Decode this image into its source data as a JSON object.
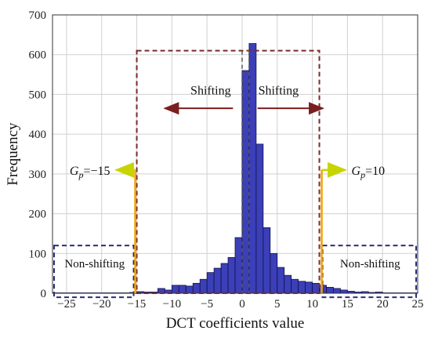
{
  "chart_data": {
    "type": "bar",
    "xlabel": "DCT coefficients value",
    "ylabel": "Frequency",
    "xlim": [
      -27,
      25
    ],
    "ylim": [
      0,
      700
    ],
    "xticks": [
      -25,
      -20,
      -15,
      -10,
      -5,
      0,
      5,
      10,
      15,
      20,
      25
    ],
    "yticks": [
      0,
      100,
      200,
      300,
      400,
      500,
      600,
      700
    ],
    "grid": true,
    "bar_color": "#3b3fb8",
    "bar_edge_color": "#12124a",
    "bins": [
      {
        "x": -27,
        "y": 1
      },
      {
        "x": -26,
        "y": 1
      },
      {
        "x": -25,
        "y": 1
      },
      {
        "x": -24,
        "y": 1
      },
      {
        "x": -23,
        "y": 1
      },
      {
        "x": -22,
        "y": 1
      },
      {
        "x": -21,
        "y": 1
      },
      {
        "x": -20,
        "y": 1
      },
      {
        "x": -19,
        "y": 1
      },
      {
        "x": -18,
        "y": 1
      },
      {
        "x": -17,
        "y": 1
      },
      {
        "x": -16,
        "y": 2
      },
      {
        "x": -15,
        "y": 4
      },
      {
        "x": -14,
        "y": 3
      },
      {
        "x": -13,
        "y": 3
      },
      {
        "x": -12,
        "y": 12
      },
      {
        "x": -11,
        "y": 8
      },
      {
        "x": -10,
        "y": 20
      },
      {
        "x": -9,
        "y": 20
      },
      {
        "x": -8,
        "y": 18
      },
      {
        "x": -7,
        "y": 25
      },
      {
        "x": -6,
        "y": 35
      },
      {
        "x": -5,
        "y": 52
      },
      {
        "x": -4,
        "y": 63
      },
      {
        "x": -3,
        "y": 75
      },
      {
        "x": -2,
        "y": 90
      },
      {
        "x": -1,
        "y": 140
      },
      {
        "x": 0,
        "y": 560
      },
      {
        "x": 1,
        "y": 628
      },
      {
        "x": 2,
        "y": 375
      },
      {
        "x": 3,
        "y": 165
      },
      {
        "x": 4,
        "y": 100
      },
      {
        "x": 5,
        "y": 65
      },
      {
        "x": 6,
        "y": 45
      },
      {
        "x": 7,
        "y": 35
      },
      {
        "x": 8,
        "y": 30
      },
      {
        "x": 9,
        "y": 28
      },
      {
        "x": 10,
        "y": 25
      },
      {
        "x": 11,
        "y": 20
      },
      {
        "x": 12,
        "y": 15
      },
      {
        "x": 13,
        "y": 12
      },
      {
        "x": 14,
        "y": 8
      },
      {
        "x": 15,
        "y": 5
      },
      {
        "x": 16,
        "y": 3
      },
      {
        "x": 17,
        "y": 4
      },
      {
        "x": 18,
        "y": 2
      },
      {
        "x": 19,
        "y": 3
      },
      {
        "x": 20,
        "y": 1
      },
      {
        "x": 21,
        "y": 1
      },
      {
        "x": 22,
        "y": 1
      },
      {
        "x": 23,
        "y": 1
      },
      {
        "x": 24,
        "y": 1
      }
    ],
    "annotations": {
      "shift_left": "Shifting",
      "shift_right": "Shifting",
      "gp_left_main": "G",
      "gp_left_sub": "p",
      "gp_left_value": "=−15",
      "gp_right_main": "G",
      "gp_right_sub": "p",
      "gp_right_value": "=10",
      "nonshift_left": "Non-shifting",
      "nonshift_right": "Non-shifting"
    },
    "regions": {
      "shifting_range": [
        -15,
        11
      ],
      "shifting_top": 610,
      "nonshift_left_range": [
        -27,
        -15
      ],
      "nonshift_right_range": [
        11,
        25
      ],
      "nonshift_y_range": [
        -10,
        120
      ],
      "gp_left": -15,
      "gp_right": 11,
      "gp_marker_top": 310
    },
    "colors": {
      "shifting_box": "#7a2a2a",
      "nonshift_box": "#2a2f7a",
      "shift_arrow": "#7a1f1f",
      "gp_arrow": "#c8d400",
      "gp_line": "#f4a300",
      "grid": "#d0d0d0",
      "zero_dash": "#555555"
    }
  }
}
